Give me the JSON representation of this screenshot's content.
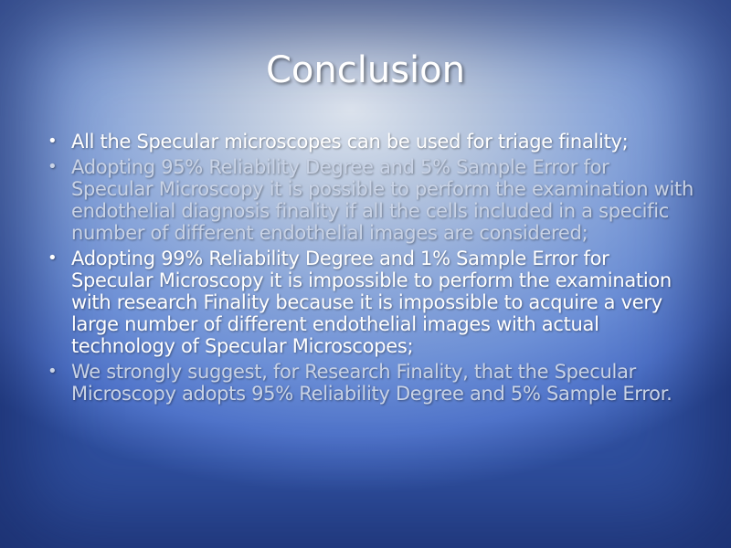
{
  "slide": {
    "title": "Conclusion",
    "bullets": [
      {
        "text": "All the Specular microscopes can be used for triage finality;"
      },
      {
        "text": "Adopting 95% Reliability Degree and 5% Sample Error for Specular Microscopy it is possible to perform the examination with endothelial diagnosis finality if all the cells included in a specific number of different endothelial images are considered;"
      },
      {
        "text": "Adopting 99% Reliability Degree and 1% Sample Error for Specular Microscopy it is impossible to perform the examination with research Finality because it is impossible to acquire a very large number of different endothelial images with actual technology of Specular Microscopes;"
      },
      {
        "text": "We strongly suggest, for Research Finality, that the Specular Microscopy adopts 95% Reliability Degree and 5% Sample Error."
      }
    ]
  }
}
